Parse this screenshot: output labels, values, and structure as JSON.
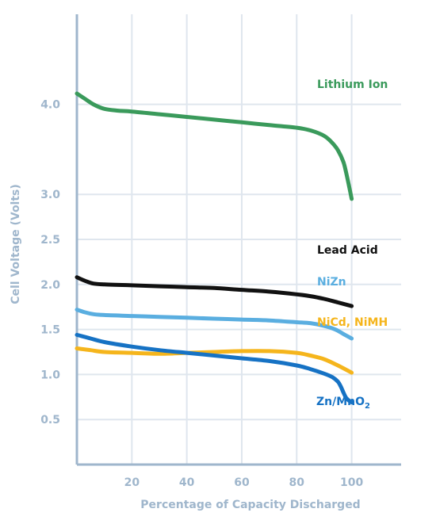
{
  "chart_data": {
    "type": "line",
    "title": "",
    "xlabel": "Percentage of Capacity Discharged",
    "ylabel": "Cell Voltage (Volts)",
    "xlim": [
      0,
      118
    ],
    "ylim": [
      0,
      5
    ],
    "xticks": [
      20,
      40,
      60,
      80,
      100
    ],
    "yticks": [
      0.5,
      1.0,
      1.5,
      2.0,
      2.5,
      3.0,
      4.0
    ],
    "ytick_labels": [
      "0.5",
      "1.0",
      "1.5",
      "2.0",
      "2.5",
      "3.0",
      "4.0"
    ],
    "grid": true,
    "legend": "inline labels at right end of each curve",
    "colors": {
      "axis": "#9fb6cc",
      "grid": "#dfe6ee",
      "text": "#9fb6cc"
    },
    "series": [
      {
        "name": "Lithium Ion",
        "color": "#3a9a5b",
        "x": [
          0,
          3,
          6,
          10,
          15,
          20,
          30,
          40,
          50,
          60,
          70,
          80,
          85,
          90,
          93,
          95,
          97,
          98,
          99,
          100
        ],
        "y": [
          4.12,
          4.06,
          4.0,
          3.95,
          3.93,
          3.92,
          3.89,
          3.86,
          3.83,
          3.8,
          3.77,
          3.74,
          3.71,
          3.65,
          3.57,
          3.49,
          3.36,
          3.24,
          3.1,
          2.95
        ]
      },
      {
        "name": "Lead Acid",
        "color": "#111111",
        "x": [
          0,
          3,
          6,
          10,
          20,
          30,
          40,
          50,
          60,
          70,
          80,
          85,
          90,
          95,
          100
        ],
        "y": [
          2.08,
          2.04,
          2.01,
          2.0,
          1.99,
          1.98,
          1.97,
          1.96,
          1.94,
          1.92,
          1.89,
          1.87,
          1.84,
          1.8,
          1.76
        ]
      },
      {
        "name": "NiZn",
        "color": "#5aaee0",
        "x": [
          0,
          3,
          6,
          10,
          20,
          30,
          40,
          50,
          60,
          70,
          80,
          85,
          90,
          94,
          97,
          100
        ],
        "y": [
          1.72,
          1.69,
          1.67,
          1.66,
          1.65,
          1.64,
          1.63,
          1.62,
          1.61,
          1.6,
          1.58,
          1.57,
          1.54,
          1.5,
          1.45,
          1.4
        ]
      },
      {
        "name": "NiCd, NiMH",
        "color": "#f5b51c",
        "x": [
          0,
          5,
          10,
          20,
          30,
          40,
          50,
          60,
          70,
          80,
          85,
          90,
          95,
          100
        ],
        "y": [
          1.29,
          1.27,
          1.25,
          1.24,
          1.23,
          1.24,
          1.25,
          1.26,
          1.26,
          1.24,
          1.21,
          1.17,
          1.1,
          1.02
        ]
      },
      {
        "name": "Zn/MnO",
        "name_subscript": "2",
        "color": "#1672c4",
        "x": [
          0,
          5,
          10,
          20,
          30,
          40,
          50,
          60,
          70,
          80,
          85,
          90,
          93,
          95,
          96,
          97,
          98,
          99,
          100
        ],
        "y": [
          1.44,
          1.4,
          1.36,
          1.31,
          1.27,
          1.24,
          1.21,
          1.18,
          1.15,
          1.1,
          1.06,
          1.01,
          0.97,
          0.92,
          0.87,
          0.8,
          0.74,
          0.71,
          0.69
        ]
      }
    ]
  }
}
